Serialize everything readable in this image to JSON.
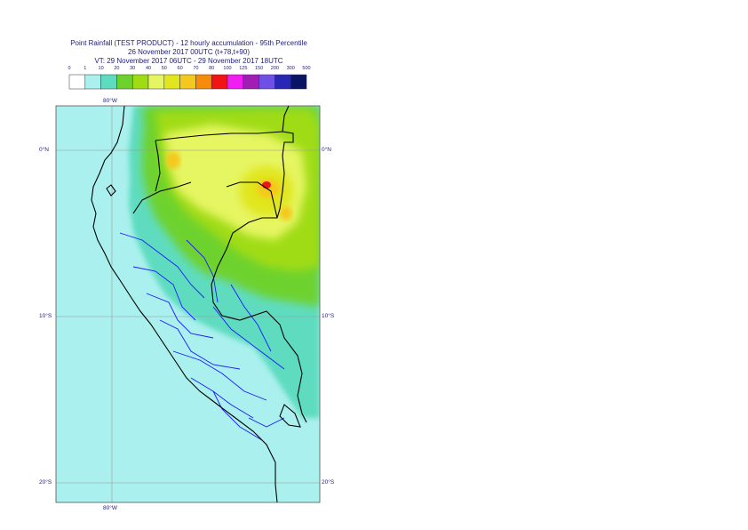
{
  "header": {
    "line1": "Point Rainfall (TEST PRODUCT) - 12 hourly accumulation - 95th Percentile",
    "line2": "26 November 2017 00UTC (t+78,t+90)",
    "line3": "VT: 29 November 2017 06UTC - 29 November 2017 18UTC"
  },
  "legend": {
    "labels": [
      "0",
      "1",
      "10",
      "20",
      "30",
      "40",
      "50",
      "60",
      "70",
      "80",
      "100",
      "125",
      "150",
      "200",
      "300",
      "500"
    ],
    "colors": [
      "#ffffff",
      "#aaf0ee",
      "#5fdcc0",
      "#6ed22e",
      "#a0dc14",
      "#e6f562",
      "#e1e61e",
      "#f5c81e",
      "#f58c0a",
      "#f01414",
      "#f01ef0",
      "#a01eb4",
      "#6e50e6",
      "#2828b4",
      "#0a1464"
    ]
  },
  "axes": {
    "top_lon": "80°W",
    "bottom_lon": "80°W",
    "left_lats": [
      "0°N",
      "10°S",
      "20°S"
    ],
    "right_lats": [
      "0°N",
      "10°S",
      "20°S"
    ]
  },
  "colors": {
    "ocean": "#aaf0ee",
    "border_country": "#000000",
    "border_region": "#1a1aff",
    "grid": "#9a9a9a"
  }
}
